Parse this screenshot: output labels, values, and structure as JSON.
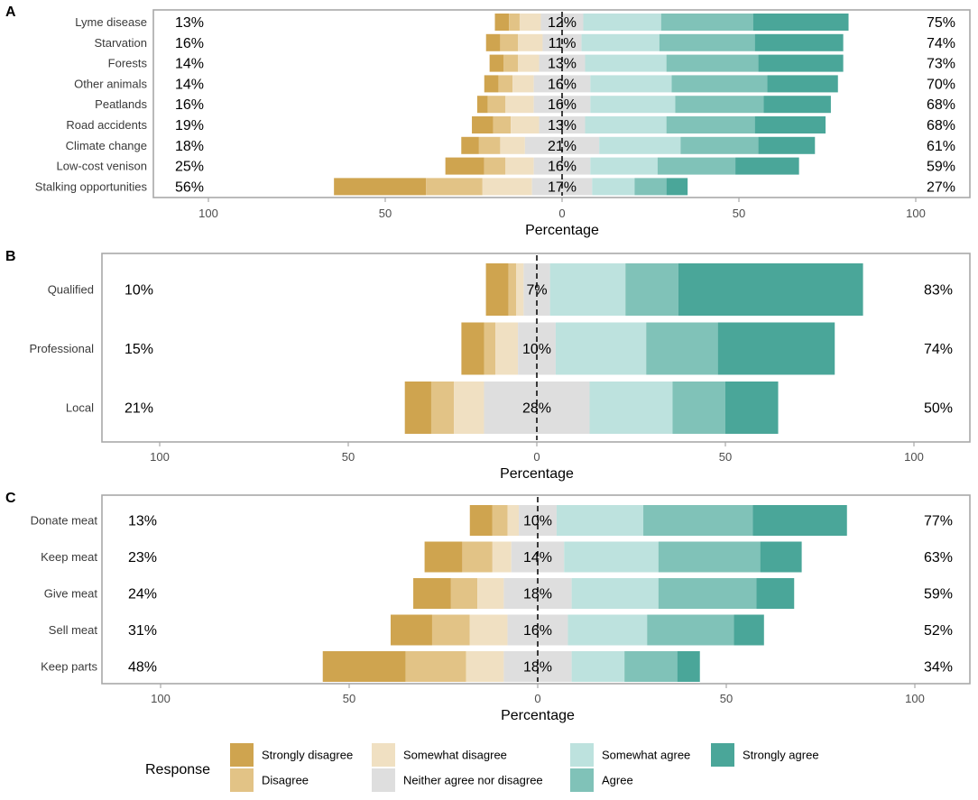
{
  "chart_data": [
    {
      "panel": "A",
      "type": "bar",
      "orientation": "horizontal-diverging-likert",
      "xlabel": "Percentage",
      "xticks": [
        100,
        50,
        0,
        50,
        100
      ],
      "categories": [
        "Lyme disease",
        "Starvation",
        "Forests",
        "Other animals",
        "Peatlands",
        "Road accidents",
        "Climate change",
        "Low-cost venison",
        "Stalking opportunities"
      ],
      "values": [
        [
          4,
          3,
          6,
          12,
          22,
          26,
          27
        ],
        [
          4,
          5,
          7,
          11,
          22,
          27,
          25
        ],
        [
          4,
          4,
          6,
          13,
          23,
          26,
          24
        ],
        [
          4,
          4,
          6,
          16,
          23,
          27,
          20
        ],
        [
          3,
          5,
          8,
          16,
          24,
          25,
          19
        ],
        [
          6,
          5,
          8,
          13,
          23,
          25,
          20
        ],
        [
          5,
          6,
          7,
          21,
          23,
          22,
          16
        ],
        [
          11,
          6,
          8,
          16,
          19,
          22,
          18
        ],
        [
          26,
          16,
          14,
          17,
          12,
          9,
          6
        ]
      ],
      "left_labels": [
        "13%",
        "16%",
        "14%",
        "14%",
        "16%",
        "19%",
        "18%",
        "25%",
        "56%"
      ],
      "center_labels": [
        "12%",
        "11%",
        "13%",
        "16%",
        "16%",
        "13%",
        "21%",
        "16%",
        "17%"
      ],
      "right_labels": [
        "75%",
        "74%",
        "73%",
        "70%",
        "68%",
        "68%",
        "61%",
        "59%",
        "27%"
      ]
    },
    {
      "panel": "B",
      "type": "bar",
      "orientation": "horizontal-diverging-likert",
      "xlabel": "Percentage",
      "xticks": [
        100,
        50,
        0,
        50,
        100
      ],
      "categories": [
        "Qualified",
        "Professional",
        "Local"
      ],
      "values": [
        [
          6,
          2,
          2,
          7,
          20,
          14,
          49
        ],
        [
          6,
          3,
          6,
          10,
          24,
          19,
          31
        ],
        [
          7,
          6,
          8,
          28,
          22,
          14,
          14
        ]
      ],
      "left_labels": [
        "10%",
        "15%",
        "21%"
      ],
      "center_labels": [
        "7%",
        "10%",
        "28%"
      ],
      "right_labels": [
        "83%",
        "74%",
        "50%"
      ]
    },
    {
      "panel": "C",
      "type": "bar",
      "orientation": "horizontal-diverging-likert",
      "xlabel": "Percentage",
      "xticks": [
        100,
        50,
        0,
        50,
        100
      ],
      "categories": [
        "Donate meat",
        "Keep meat",
        "Give meat",
        "Sell meat",
        "Keep parts"
      ],
      "values": [
        [
          6,
          4,
          3,
          10,
          23,
          29,
          25
        ],
        [
          10,
          8,
          5,
          14,
          25,
          27,
          11
        ],
        [
          10,
          7,
          7,
          18,
          23,
          26,
          10
        ],
        [
          11,
          10,
          10,
          16,
          21,
          23,
          8
        ],
        [
          22,
          16,
          10,
          18,
          14,
          14,
          6
        ]
      ],
      "left_labels": [
        "13%",
        "23%",
        "24%",
        "31%",
        "48%"
      ],
      "center_labels": [
        "10%",
        "14%",
        "18%",
        "16%",
        "18%"
      ],
      "right_labels": [
        "77%",
        "63%",
        "59%",
        "52%",
        "34%"
      ]
    }
  ],
  "legend": {
    "title": "Response",
    "items": [
      {
        "label": "Strongly disagree",
        "color": "#cfa44f"
      },
      {
        "label": "Disagree",
        "color": "#e2c386"
      },
      {
        "label": "Somewhat disagree",
        "color": "#f0e0c2"
      },
      {
        "label": "Neither agree nor disagree",
        "color": "#dedede"
      },
      {
        "label": "Somewhat agree",
        "color": "#bde2de"
      },
      {
        "label": "Agree",
        "color": "#80c2b8"
      },
      {
        "label": "Strongly agree",
        "color": "#4aa699"
      }
    ]
  }
}
